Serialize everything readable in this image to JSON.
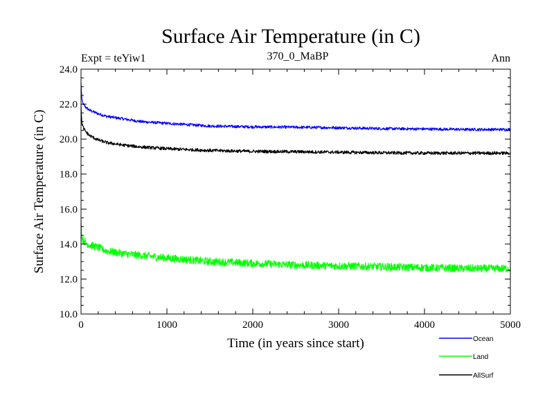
{
  "chart_data": {
    "type": "line",
    "title": "Surface Air Temperature (in C)",
    "experiment_label": "Expt = teYiw1",
    "subtitle": "370_0_MaBP",
    "period_label": "Ann",
    "xlabel": "Time (in years since start)",
    "ylabel": "Surface Air Temperature (in C)",
    "xlim": [
      0,
      5000
    ],
    "ylim": [
      10,
      24
    ],
    "xticks": [
      0,
      1000,
      2000,
      3000,
      4000,
      5000
    ],
    "xtick_labels": [
      "0",
      "1000",
      "2000",
      "3000",
      "4000",
      "5000"
    ],
    "yticks": [
      10,
      12,
      14,
      16,
      18,
      20,
      22,
      24
    ],
    "ytick_labels": [
      "10.0",
      "12.0",
      "14.0",
      "16.0",
      "18.0",
      "20.0",
      "22.0",
      "24.0"
    ],
    "series": [
      {
        "name": "Ocean",
        "color": "#0000ff",
        "noise": 0.08,
        "x": [
          0,
          10,
          30,
          60,
          100,
          200,
          300,
          500,
          700,
          1000,
          1500,
          2000,
          2500,
          3000,
          3500,
          4000,
          4500,
          5000
        ],
        "y": [
          23.2,
          22.2,
          21.95,
          21.8,
          21.65,
          21.45,
          21.3,
          21.15,
          21.0,
          20.9,
          20.75,
          20.7,
          20.68,
          20.65,
          20.6,
          20.58,
          20.55,
          20.55
        ]
      },
      {
        "name": "Land",
        "color": "#00ff00",
        "noise": 0.22,
        "x": [
          0,
          10,
          30,
          60,
          100,
          200,
          300,
          500,
          700,
          1000,
          1500,
          2000,
          2500,
          3000,
          3500,
          4000,
          4500,
          5000
        ],
        "y": [
          15.5,
          14.3,
          14.2,
          14.05,
          13.95,
          13.8,
          13.6,
          13.45,
          13.35,
          13.2,
          13.0,
          12.9,
          12.8,
          12.75,
          12.7,
          12.65,
          12.6,
          12.6
        ]
      },
      {
        "name": "AllSurf",
        "color": "#000000",
        "noise": 0.09,
        "x": [
          0,
          10,
          30,
          60,
          100,
          200,
          300,
          500,
          700,
          1000,
          1500,
          2000,
          2500,
          3000,
          3500,
          4000,
          4500,
          5000
        ],
        "y": [
          21.9,
          20.9,
          20.6,
          20.4,
          20.2,
          19.95,
          19.8,
          19.65,
          19.55,
          19.45,
          19.35,
          19.3,
          19.28,
          19.25,
          19.22,
          19.2,
          19.2,
          19.2
        ]
      }
    ],
    "legend_placement": "bottom-right"
  }
}
